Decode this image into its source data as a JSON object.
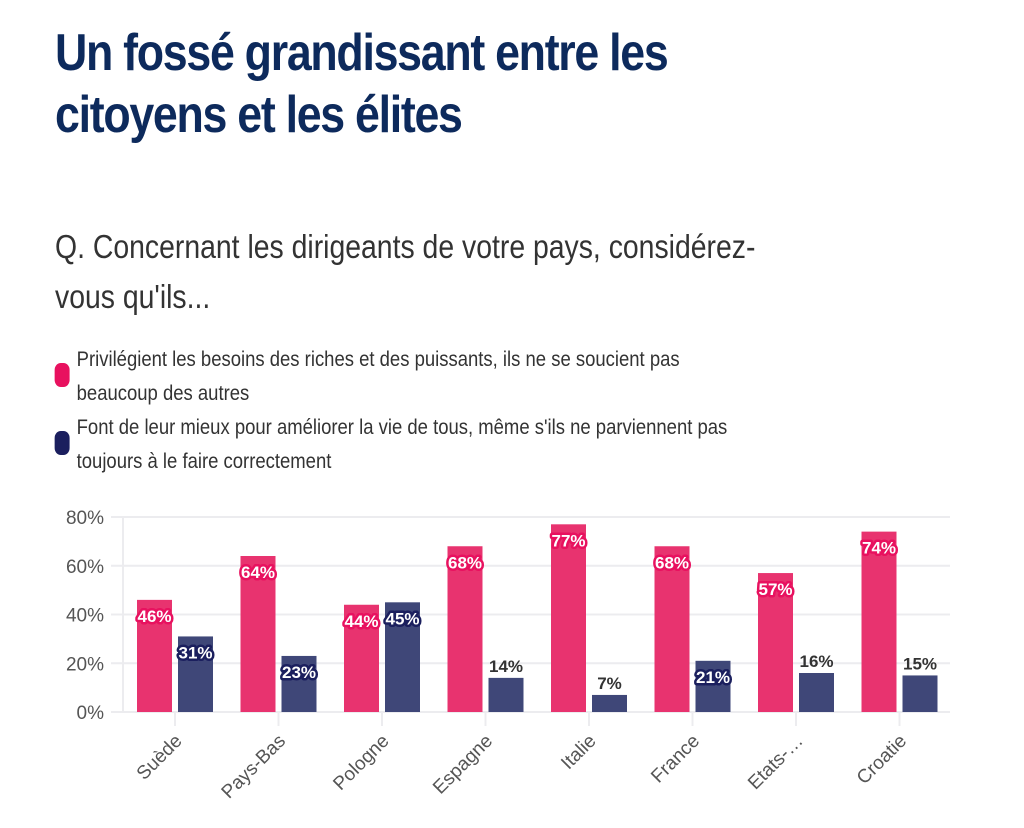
{
  "header": {
    "title": "Un fossé grandissant entre les citoyens et les élites",
    "title_lines": [
      "Un fossé grandissant entre les",
      "citoyens et les élites"
    ],
    "question_lines": [
      "Q. Concernant les dirigeants de votre pays, considérez-",
      "vous qu'ils..."
    ]
  },
  "legend": [
    {
      "lines": [
        "Privilégient les besoins des riches et des puissants, ils ne se soucient pas",
        "beaucoup des autres"
      ],
      "swatch_color": "#e8115f"
    },
    {
      "lines": [
        "Font de leur mieux pour améliorer la vie de tous, même s'ils ne parviennent pas",
        "toujours à le faire correctement"
      ],
      "swatch_color": "#1b1f5e"
    }
  ],
  "chart_data": {
    "type": "bar",
    "title": "Un fossé grandissant entre les citoyens et les élites",
    "subtitle": "Q. Concernant les dirigeants de votre pays, considérez-vous qu'ils...",
    "categories": [
      "Suède",
      "Pays-Bas",
      "Pologne",
      "Espagne",
      "Italie",
      "France",
      "Etats-…",
      "Croatie"
    ],
    "series": [
      {
        "name": "Privilégient les besoins des riches et des puissants, ils ne se soucient pas beaucoup des autres",
        "values": [
          46,
          64,
          44,
          68,
          77,
          68,
          57,
          74
        ],
        "color": "#e8336f",
        "label_bg": "#e8115f"
      },
      {
        "name": "Font de leur mieux pour améliorer la vie de tous, même s'ils ne parviennent pas toujours à le faire correctement",
        "values": [
          31,
          23,
          45,
          14,
          7,
          21,
          16,
          15
        ],
        "color": "#3f4778",
        "label_bg": "#1b1f5e"
      }
    ],
    "labels": [
      [
        "46%",
        "64%",
        "44%",
        "68%",
        "77%",
        "68%",
        "57%",
        "74%"
      ],
      [
        "31%",
        "23%",
        "45%",
        "14%",
        "7%",
        "21%",
        "16%",
        "15%"
      ]
    ],
    "yticks": [
      0,
      20,
      40,
      60,
      80
    ],
    "ytick_labels": [
      "0%",
      "20%",
      "40%",
      "60%",
      "80%"
    ],
    "ylim": [
      0,
      80
    ],
    "xlabel": "",
    "ylabel": "",
    "grid": true,
    "legend_position": "top-left"
  }
}
